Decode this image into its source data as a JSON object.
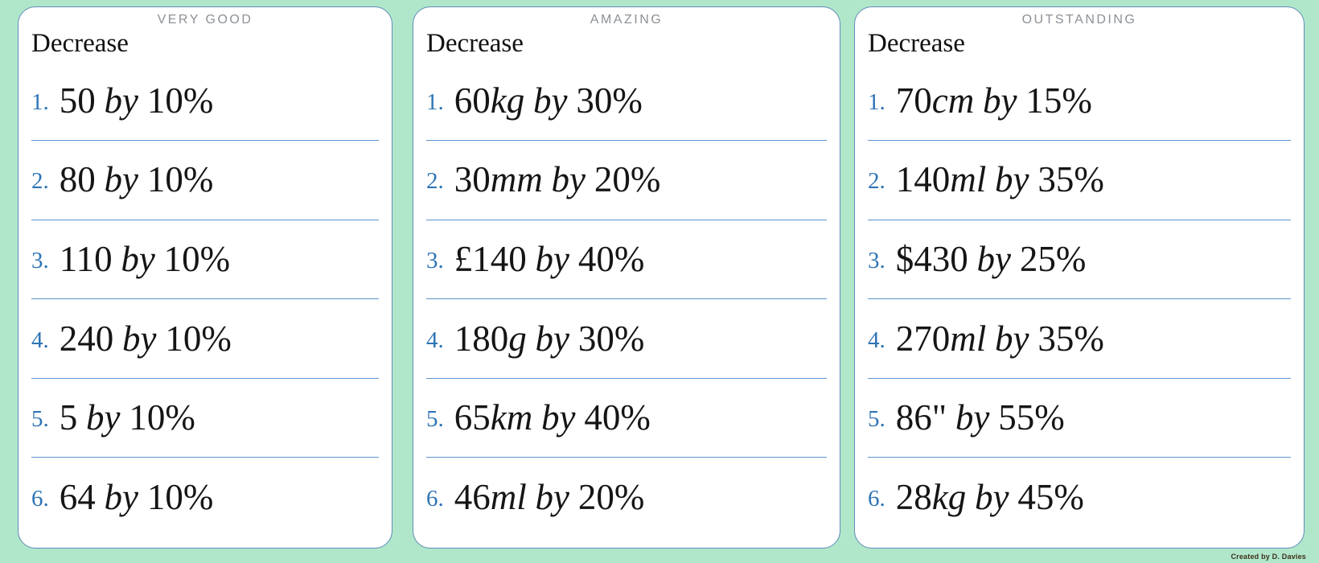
{
  "page": {
    "background_color": "#b0e7ca",
    "card_border_color": "#5f8cb8",
    "divider_color": "#5d94cf",
    "number_color": "#2e74b5",
    "badge_color": "#8c9196",
    "credit": "Created by D. Davies"
  },
  "cards": [
    {
      "badge": "VERY GOOD",
      "title": "Decrease",
      "items": [
        {
          "num": "1.",
          "prefix": "",
          "value": "50",
          "unit": "",
          "suffix": "",
          "by": "by",
          "percent": "10%"
        },
        {
          "num": "2.",
          "prefix": "",
          "value": "80",
          "unit": "",
          "suffix": "",
          "by": "by",
          "percent": "10%"
        },
        {
          "num": "3.",
          "prefix": "",
          "value": "110",
          "unit": "",
          "suffix": "",
          "by": "by",
          "percent": "10%"
        },
        {
          "num": "4.",
          "prefix": "",
          "value": "240",
          "unit": "",
          "suffix": "",
          "by": "by",
          "percent": "10%"
        },
        {
          "num": "5.",
          "prefix": "",
          "value": "5",
          "unit": "",
          "suffix": "",
          "by": "by",
          "percent": "10%"
        },
        {
          "num": "6.",
          "prefix": "",
          "value": "64",
          "unit": "",
          "suffix": "",
          "by": "by",
          "percent": "10%"
        }
      ]
    },
    {
      "badge": "AMAZING",
      "title": "Decrease",
      "items": [
        {
          "num": "1.",
          "prefix": "",
          "value": "60",
          "unit": "kg",
          "suffix": "",
          "by": "by",
          "percent": "30%"
        },
        {
          "num": "2.",
          "prefix": "",
          "value": "30",
          "unit": "mm",
          "suffix": "",
          "by": "by",
          "percent": "20%"
        },
        {
          "num": "3.",
          "prefix": "£",
          "value": "140",
          "unit": "",
          "suffix": "",
          "by": "by",
          "percent": "40%"
        },
        {
          "num": "4.",
          "prefix": "",
          "value": "180",
          "unit": "g",
          "suffix": "",
          "by": "by",
          "percent": "30%"
        },
        {
          "num": "5.",
          "prefix": "",
          "value": "65",
          "unit": "km",
          "suffix": "",
          "by": "by",
          "percent": "40%"
        },
        {
          "num": "6.",
          "prefix": "",
          "value": "46",
          "unit": "ml",
          "suffix": "",
          "by": "by",
          "percent": "20%"
        }
      ]
    },
    {
      "badge": "OUTSTANDING",
      "title": "Decrease",
      "items": [
        {
          "num": "1.",
          "prefix": "",
          "value": "70",
          "unit": "cm",
          "suffix": "",
          "by": "by",
          "percent": "15%"
        },
        {
          "num": "2.",
          "prefix": "",
          "value": "140",
          "unit": "ml",
          "suffix": "",
          "by": "by",
          "percent": "35%"
        },
        {
          "num": "3.",
          "prefix": "$",
          "value": "430",
          "unit": "",
          "suffix": "",
          "by": "by",
          "percent": "25%"
        },
        {
          "num": "4.",
          "prefix": "",
          "value": "270",
          "unit": "ml",
          "suffix": "",
          "by": "by",
          "percent": "35%"
        },
        {
          "num": "5.",
          "prefix": "",
          "value": "86",
          "unit": "",
          "suffix": "\"",
          "by": "by",
          "percent": "55%"
        },
        {
          "num": "6.",
          "prefix": "",
          "value": "28",
          "unit": "kg",
          "suffix": "",
          "by": "by",
          "percent": "45%"
        }
      ]
    }
  ]
}
